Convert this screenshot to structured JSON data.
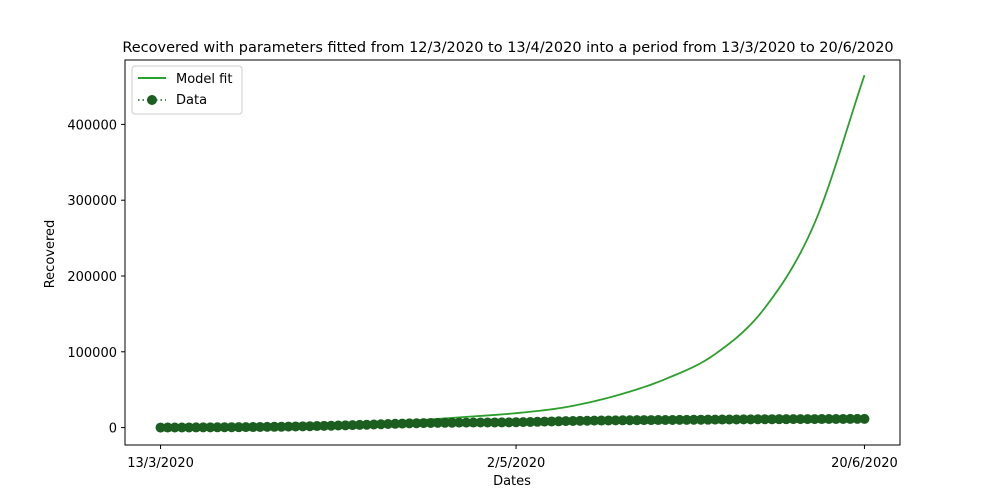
{
  "chart_data": {
    "type": "line",
    "title": "Recovered with parameters fitted from 12/3/2020 to 13/4/2020 into a period from 13/3/2020 to 20/6/2020",
    "xlabel": "Dates",
    "ylabel": "Recovered",
    "x_tick_labels": [
      "13/3/2020",
      "2/5/2020",
      "20/6/2020"
    ],
    "y_ticks": [
      0,
      100000,
      200000,
      300000,
      400000
    ],
    "y_tick_labels": [
      "0",
      "100000",
      "200000",
      "300000",
      "400000"
    ],
    "xlim": [
      "2020-03-08",
      "2020-06-25"
    ],
    "ylim": [
      -23000,
      485000
    ],
    "grid": false,
    "legend_position": "top-left",
    "series": [
      {
        "name": "Model fit",
        "style": "solid-line",
        "color": "#2ca02c",
        "x": [
          "2020-03-13",
          "2020-03-20",
          "2020-03-27",
          "2020-04-03",
          "2020-04-10",
          "2020-04-17",
          "2020-04-24",
          "2020-05-02",
          "2020-05-09",
          "2020-05-16",
          "2020-05-23",
          "2020-05-30",
          "2020-06-06",
          "2020-06-13",
          "2020-06-20"
        ],
        "y": [
          0,
          800,
          1800,
          3200,
          5500,
          9000,
          13500,
          19000,
          27000,
          42000,
          64000,
          97000,
          158000,
          270000,
          465000
        ]
      },
      {
        "name": "Data",
        "style": "dotted-line-with-circle-markers",
        "color": "#1b5e20",
        "x": [
          "2020-03-13",
          "2020-03-20",
          "2020-03-27",
          "2020-04-03",
          "2020-04-10",
          "2020-04-17",
          "2020-04-24",
          "2020-05-02",
          "2020-05-09",
          "2020-05-16",
          "2020-05-23",
          "2020-05-30",
          "2020-06-06",
          "2020-06-13",
          "2020-06-20"
        ],
        "y": [
          0,
          300,
          800,
          1800,
          3500,
          5500,
          6500,
          7000,
          8500,
          9500,
          10000,
          10500,
          11000,
          11200,
          11500
        ]
      }
    ]
  }
}
